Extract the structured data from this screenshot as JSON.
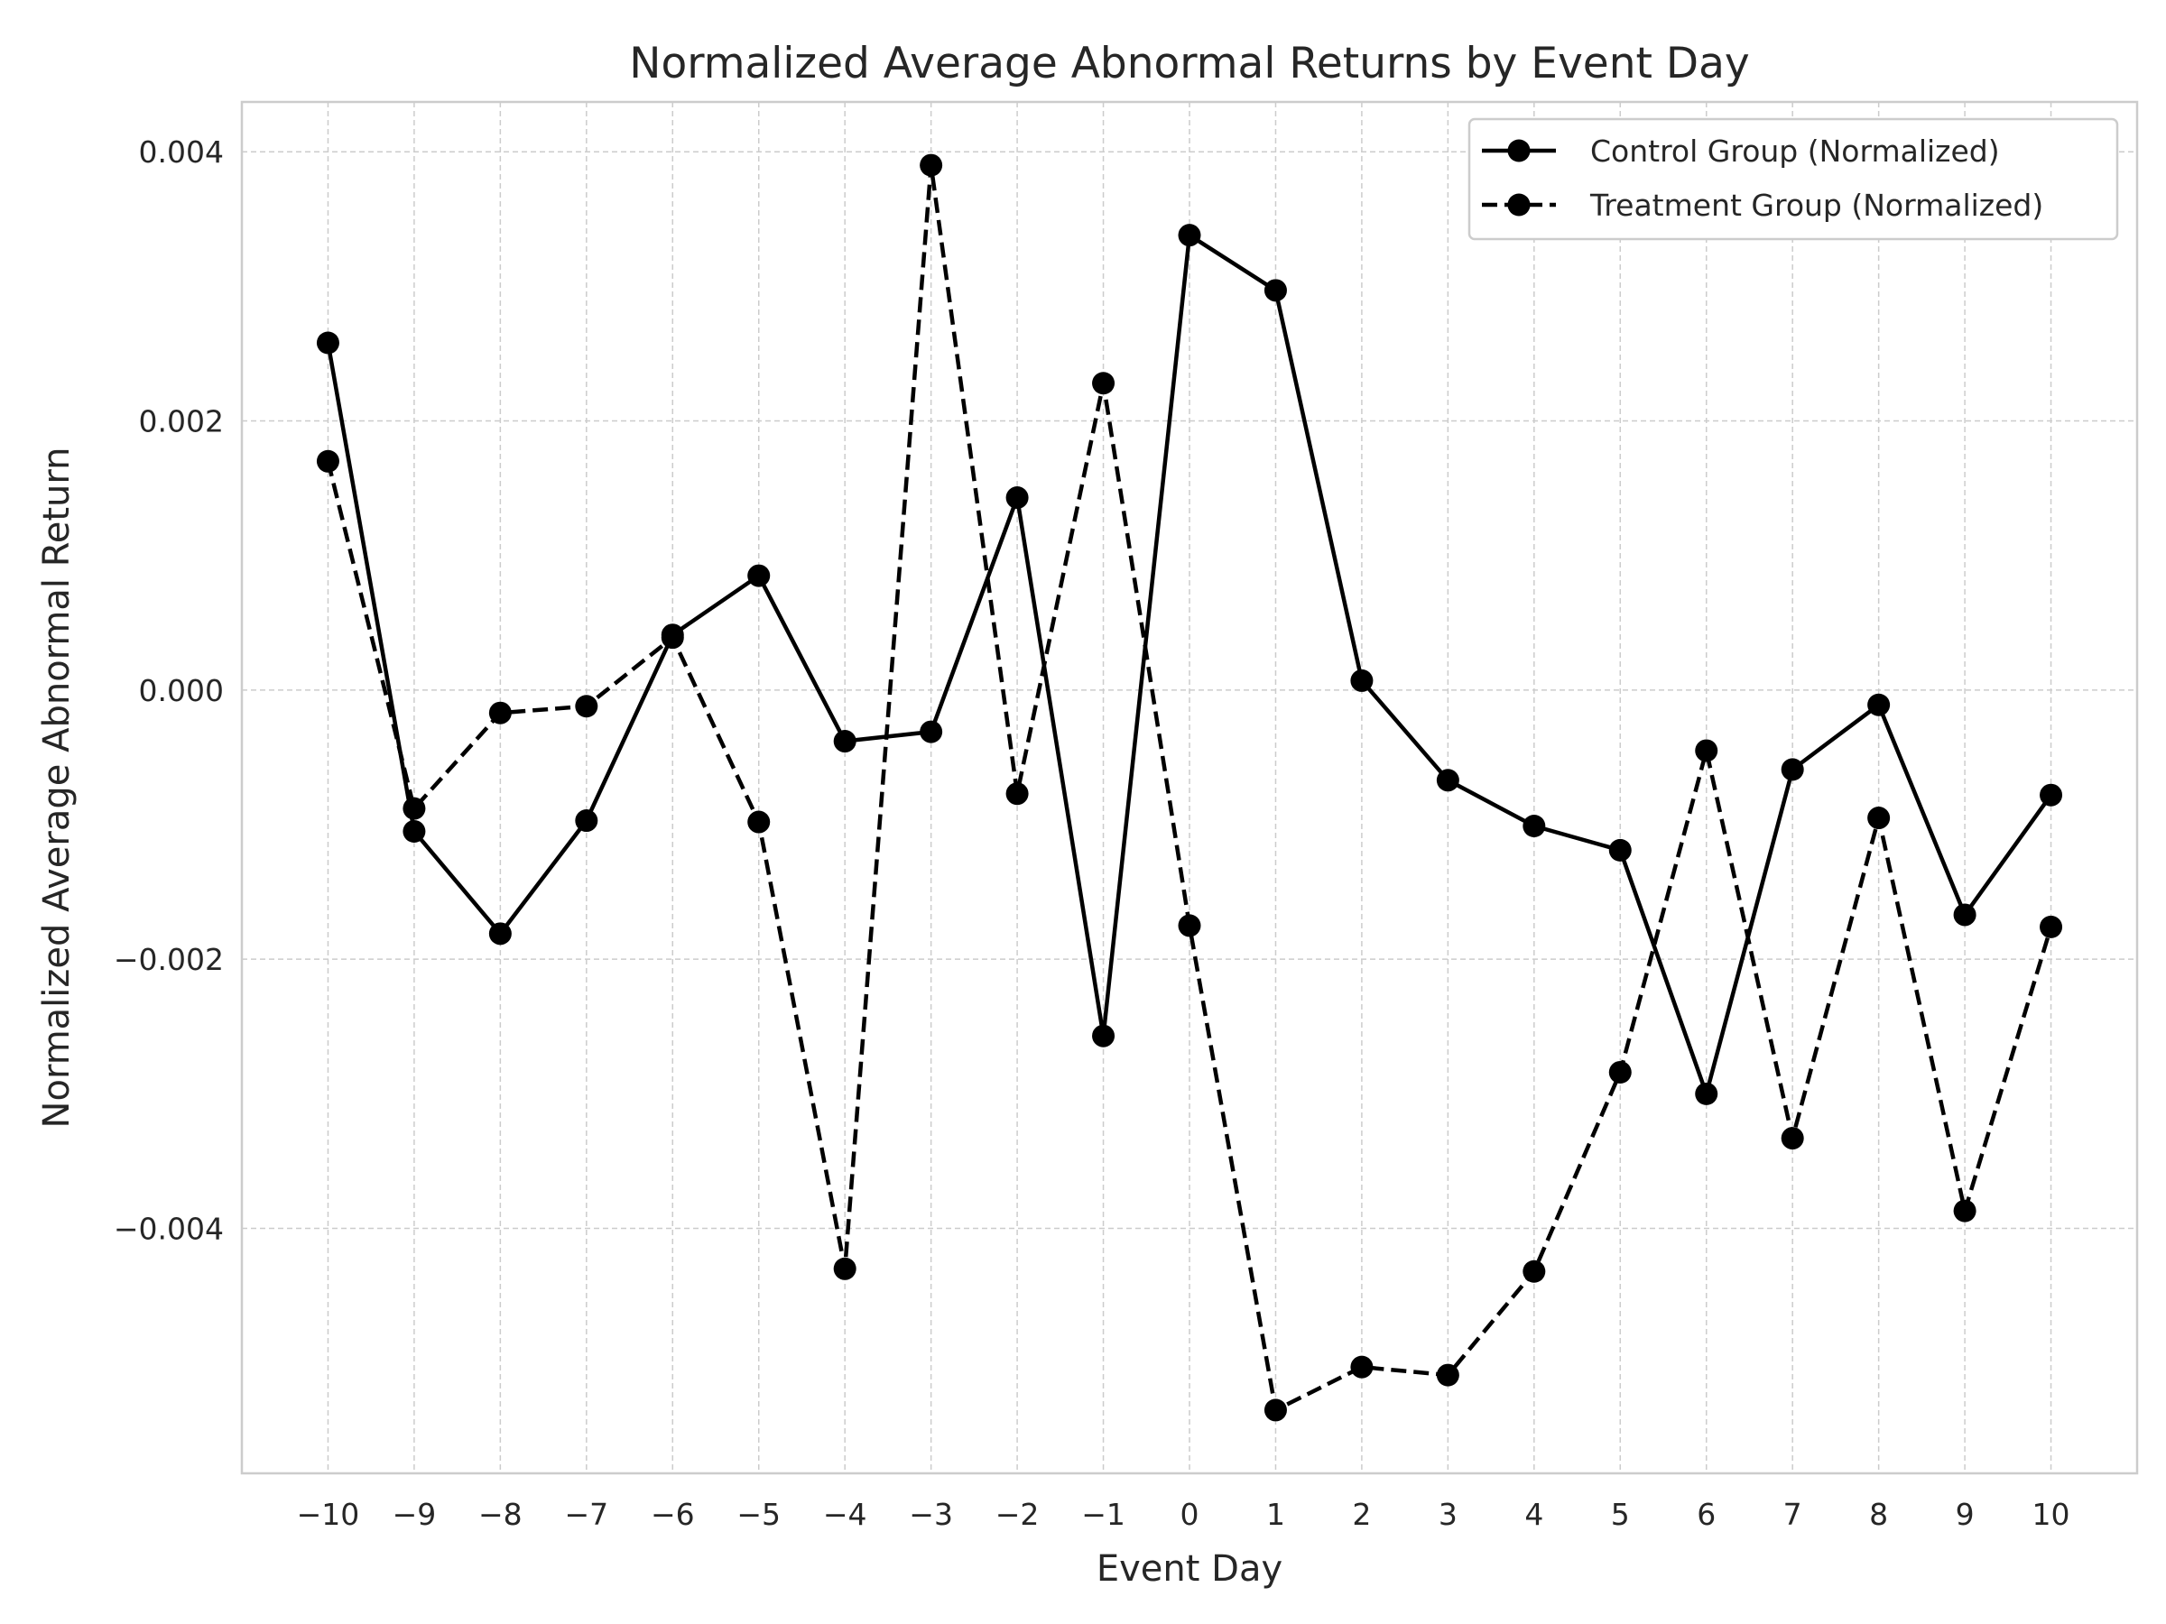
{
  "chart_data": {
    "type": "line",
    "title": "Normalized Average Abnormal Returns by Event Day",
    "xlabel": "Event Day",
    "ylabel": "Normalized Average Abnormal Return",
    "x": [
      -10,
      -9,
      -8,
      -7,
      -6,
      -5,
      -4,
      -3,
      -2,
      -1,
      0,
      1,
      2,
      3,
      4,
      5,
      6,
      7,
      8,
      9,
      10
    ],
    "x_tick_labels": [
      "−10",
      "−9",
      "−8",
      "−7",
      "−6",
      "−5",
      "−4",
      "−3",
      "−2",
      "−1",
      "0",
      "1",
      "2",
      "3",
      "4",
      "5",
      "6",
      "7",
      "8",
      "9",
      "10"
    ],
    "y_ticks": [
      -0.004,
      -0.002,
      0.0,
      0.002,
      0.004
    ],
    "y_tick_labels": [
      "−0.004",
      "−0.002",
      "0.000",
      "0.002",
      "0.004"
    ],
    "xlim": [
      -11.0,
      11.0
    ],
    "ylim": [
      -0.00582,
      0.00437
    ],
    "grid": true,
    "legend_position": "top-right",
    "series": [
      {
        "name": "Control Group (Normalized)",
        "style": "solid",
        "color": "#000000",
        "values": [
          0.00258,
          -0.00105,
          -0.00181,
          -0.00097,
          0.00041,
          0.00085,
          -0.00038,
          -0.00031,
          0.00143,
          -0.00257,
          0.00338,
          0.00297,
          7e-05,
          -0.00067,
          -0.00101,
          -0.00119,
          -0.003,
          -0.00059,
          -0.00011,
          -0.00167,
          -0.00078
        ]
      },
      {
        "name": "Treatment Group (Normalized)",
        "style": "dashed",
        "color": "#000000",
        "values": [
          0.0017,
          -0.00088,
          -0.00017,
          -0.00012,
          0.00039,
          -0.00098,
          -0.0043,
          0.0039,
          -0.00077,
          0.00228,
          -0.00175,
          -0.00535,
          -0.00503,
          -0.00509,
          -0.00432,
          -0.00284,
          -0.00045,
          -0.00333,
          -0.00095,
          -0.00387,
          -0.00176
        ]
      }
    ]
  }
}
